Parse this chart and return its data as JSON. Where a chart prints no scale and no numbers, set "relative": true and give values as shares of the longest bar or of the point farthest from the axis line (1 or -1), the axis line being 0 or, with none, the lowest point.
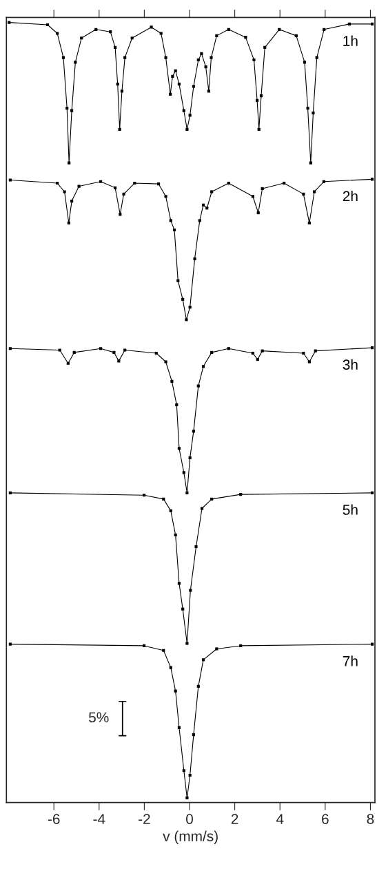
{
  "chart_data": {
    "type": "line",
    "relative": true,
    "xlabel": "v (mm/s)",
    "xlim": [
      -8.1,
      8.2
    ],
    "xticks": [
      -6,
      -4,
      -2,
      0,
      2,
      4,
      6,
      8
    ],
    "marker": "square",
    "line_style": "solid",
    "annotations": [
      "5%"
    ],
    "series": [
      {
        "name": "1h",
        "color": "#000000",
        "x": [
          -7.98,
          -6.28,
          -5.85,
          -5.58,
          -5.42,
          -5.33,
          -5.21,
          -5.05,
          -4.78,
          -4.14,
          -3.5,
          -3.29,
          -3.18,
          -3.09,
          -2.99,
          -2.86,
          -2.54,
          -1.69,
          -1.26,
          -1.05,
          -0.85,
          -0.75,
          -0.62,
          -0.46,
          -0.25,
          -0.11,
          0.02,
          0.18,
          0.39,
          0.53,
          0.72,
          0.85,
          0.96,
          1.2,
          1.73,
          2.48,
          2.85,
          2.99,
          3.07,
          3.17,
          3.33,
          3.97,
          4.72,
          5.09,
          5.23,
          5.36,
          5.47,
          5.63,
          5.95,
          7.07,
          8.08
        ],
        "values": [
          1.0,
          0.997,
          0.986,
          0.955,
          0.89,
          0.82,
          0.887,
          0.949,
          0.98,
          0.991,
          0.988,
          0.968,
          0.921,
          0.863,
          0.912,
          0.955,
          0.98,
          0.994,
          0.986,
          0.955,
          0.908,
          0.931,
          0.938,
          0.921,
          0.887,
          0.863,
          0.881,
          0.918,
          0.952,
          0.96,
          0.943,
          0.912,
          0.955,
          0.983,
          0.991,
          0.981,
          0.952,
          0.9,
          0.863,
          0.906,
          0.968,
          0.991,
          0.983,
          0.949,
          0.89,
          0.82,
          0.884,
          0.955,
          0.991,
          0.998,
          0.998
        ]
      },
      {
        "name": "2h",
        "color": "#000000",
        "x": [
          -7.93,
          -5.85,
          -5.53,
          -5.34,
          -5.21,
          -4.89,
          -3.93,
          -3.29,
          -3.07,
          -2.91,
          -2.43,
          -1.37,
          -1.05,
          -0.83,
          -0.67,
          -0.51,
          -0.3,
          -0.14,
          0.02,
          0.23,
          0.45,
          0.61,
          0.77,
          0.98,
          1.73,
          2.8,
          3.04,
          3.22,
          4.18,
          5.04,
          5.3,
          5.52,
          5.94,
          8.08
        ],
        "values": [
          0.798,
          0.794,
          0.783,
          0.743,
          0.771,
          0.79,
          0.796,
          0.788,
          0.754,
          0.78,
          0.794,
          0.793,
          0.777,
          0.746,
          0.734,
          0.669,
          0.645,
          0.619,
          0.635,
          0.697,
          0.746,
          0.766,
          0.762,
          0.783,
          0.794,
          0.777,
          0.756,
          0.787,
          0.794,
          0.78,
          0.743,
          0.783,
          0.796,
          0.799
        ]
      },
      {
        "name": "3h",
        "color": "#000000",
        "x": [
          -7.93,
          -5.74,
          -5.37,
          -5.1,
          -3.93,
          -3.34,
          -3.13,
          -2.86,
          -1.47,
          -1.05,
          -0.78,
          -0.57,
          -0.46,
          -0.25,
          -0.11,
          0.02,
          0.18,
          0.39,
          0.61,
          0.98,
          1.73,
          2.8,
          3.01,
          3.22,
          5.04,
          5.3,
          5.57,
          8.08
        ],
        "values": [
          0.582,
          0.58,
          0.563,
          0.577,
          0.582,
          0.577,
          0.566,
          0.58,
          0.576,
          0.565,
          0.54,
          0.51,
          0.454,
          0.423,
          0.397,
          0.442,
          0.476,
          0.534,
          0.559,
          0.577,
          0.582,
          0.576,
          0.568,
          0.579,
          0.576,
          0.565,
          0.579,
          0.583
        ]
      },
      {
        "name": "5h",
        "color": "#000000",
        "x": [
          -7.93,
          -2.01,
          -1.15,
          -0.83,
          -0.62,
          -0.46,
          -0.3,
          -0.11,
          0.04,
          0.29,
          0.55,
          0.98,
          2.26,
          8.08
        ],
        "values": [
          0.397,
          0.394,
          0.389,
          0.374,
          0.343,
          0.281,
          0.248,
          0.204,
          0.272,
          0.328,
          0.377,
          0.389,
          0.395,
          0.397
        ]
      },
      {
        "name": "7h",
        "color": "#000000",
        "x": [
          -7.93,
          -2.01,
          -1.15,
          -0.83,
          -0.62,
          -0.46,
          -0.25,
          -0.11,
          0.02,
          0.18,
          0.39,
          0.61,
          1.2,
          2.26,
          8.08
        ],
        "values": [
          0.203,
          0.201,
          0.195,
          0.173,
          0.143,
          0.096,
          0.041,
          0.006,
          0.035,
          0.087,
          0.149,
          0.183,
          0.197,
          0.201,
          0.203
        ]
      }
    ]
  }
}
